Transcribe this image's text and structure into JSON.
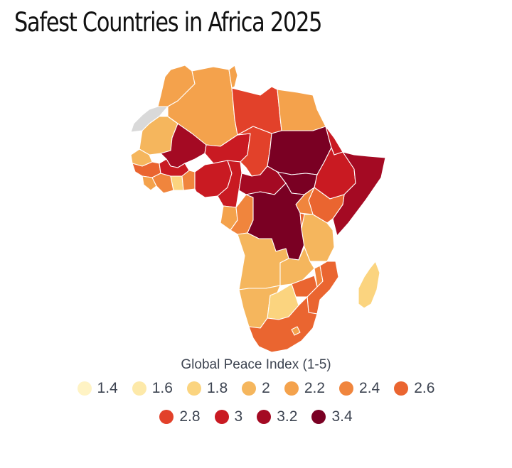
{
  "title": "Safest Countries in Africa 2025",
  "legend": {
    "title": "Global Peace Index (1-5)",
    "items": [
      {
        "label": "1.4",
        "color": "#fff3c4"
      },
      {
        "label": "1.6",
        "color": "#fde9a9"
      },
      {
        "label": "1.8",
        "color": "#fbd47f"
      },
      {
        "label": "2",
        "color": "#f5b65d"
      },
      {
        "label": "2.2",
        "color": "#f4a24c"
      },
      {
        "label": "2.4",
        "color": "#f0853d"
      },
      {
        "label": "2.6",
        "color": "#ea6530"
      },
      {
        "label": "2.8",
        "color": "#e2412a"
      },
      {
        "label": "3",
        "color": "#c91a22"
      },
      {
        "label": "3.2",
        "color": "#a40a23"
      },
      {
        "label": "3.4",
        "color": "#7a0023"
      }
    ]
  },
  "no_data_color": "#d9d9d9"
}
